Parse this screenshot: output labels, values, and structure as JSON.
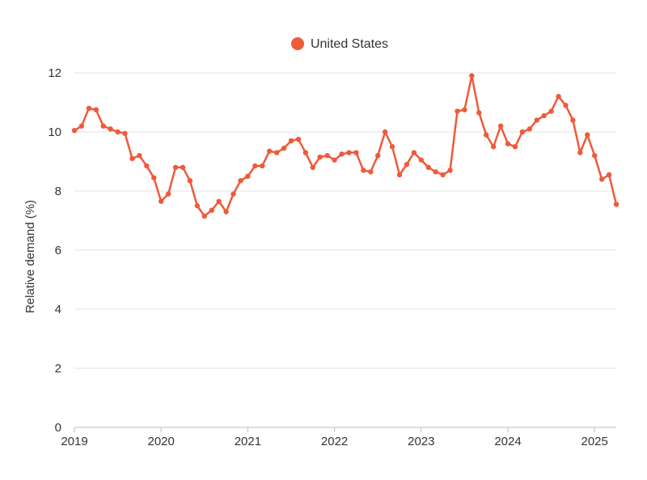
{
  "chart_data": {
    "type": "line",
    "title": "",
    "xlabel": "",
    "ylabel": "Relative demand (%)",
    "legend_position": "top-center",
    "grid": true,
    "ylim": [
      0,
      12
    ],
    "y_ticks": [
      0,
      2,
      4,
      6,
      8,
      10,
      12
    ],
    "x_tick_labels": [
      "2019",
      "2020",
      "2021",
      "2022",
      "2023",
      "2024",
      "2025"
    ],
    "x_range": [
      "2019-01",
      "2025-04"
    ],
    "series": [
      {
        "name": "United States",
        "color": "#EE5A3A",
        "points": [
          [
            "2019-01",
            10.05
          ],
          [
            "2019-02",
            10.2
          ],
          [
            "2019-03",
            10.8
          ],
          [
            "2019-04",
            10.75
          ],
          [
            "2019-05",
            10.2
          ],
          [
            "2019-06",
            10.1
          ],
          [
            "2019-07",
            10.0
          ],
          [
            "2019-08",
            9.95
          ],
          [
            "2019-09",
            9.1
          ],
          [
            "2019-10",
            9.2
          ],
          [
            "2019-11",
            8.85
          ],
          [
            "2019-12",
            8.45
          ],
          [
            "2020-01",
            7.65
          ],
          [
            "2020-02",
            7.9
          ],
          [
            "2020-03",
            8.8
          ],
          [
            "2020-04",
            8.8
          ],
          [
            "2020-05",
            8.35
          ],
          [
            "2020-06",
            7.5
          ],
          [
            "2020-07",
            7.15
          ],
          [
            "2020-08",
            7.35
          ],
          [
            "2020-09",
            7.65
          ],
          [
            "2020-10",
            7.3
          ],
          [
            "2020-11",
            7.9
          ],
          [
            "2020-12",
            8.35
          ],
          [
            "2021-01",
            8.5
          ],
          [
            "2021-02",
            8.85
          ],
          [
            "2021-03",
            8.85
          ],
          [
            "2021-04",
            9.35
          ],
          [
            "2021-05",
            9.3
          ],
          [
            "2021-06",
            9.45
          ],
          [
            "2021-07",
            9.7
          ],
          [
            "2021-08",
            9.75
          ],
          [
            "2021-09",
            9.3
          ],
          [
            "2021-10",
            8.8
          ],
          [
            "2021-11",
            9.15
          ],
          [
            "2021-12",
            9.2
          ],
          [
            "2022-01",
            9.05
          ],
          [
            "2022-02",
            9.25
          ],
          [
            "2022-03",
            9.3
          ],
          [
            "2022-04",
            9.3
          ],
          [
            "2022-05",
            8.7
          ],
          [
            "2022-06",
            8.65
          ],
          [
            "2022-07",
            9.2
          ],
          [
            "2022-08",
            10.0
          ],
          [
            "2022-09",
            9.5
          ],
          [
            "2022-10",
            8.55
          ],
          [
            "2022-11",
            8.9
          ],
          [
            "2022-12",
            9.3
          ],
          [
            "2023-01",
            9.05
          ],
          [
            "2023-02",
            8.8
          ],
          [
            "2023-03",
            8.65
          ],
          [
            "2023-04",
            8.55
          ],
          [
            "2023-05",
            8.7
          ],
          [
            "2023-06",
            10.7
          ],
          [
            "2023-07",
            10.75
          ],
          [
            "2023-08",
            11.9
          ],
          [
            "2023-09",
            10.65
          ],
          [
            "2023-10",
            9.9
          ],
          [
            "2023-11",
            9.5
          ],
          [
            "2023-12",
            10.2
          ],
          [
            "2024-01",
            9.6
          ],
          [
            "2024-02",
            9.5
          ],
          [
            "2024-03",
            10.0
          ],
          [
            "2024-04",
            10.1
          ],
          [
            "2024-05",
            10.4
          ],
          [
            "2024-06",
            10.55
          ],
          [
            "2024-07",
            10.7
          ],
          [
            "2024-08",
            11.2
          ],
          [
            "2024-09",
            10.9
          ],
          [
            "2024-10",
            10.4
          ],
          [
            "2024-11",
            9.3
          ],
          [
            "2024-12",
            9.9
          ],
          [
            "2025-01",
            9.2
          ],
          [
            "2025-02",
            8.4
          ],
          [
            "2025-03",
            8.55
          ],
          [
            "2025-04",
            7.55
          ]
        ]
      }
    ]
  }
}
